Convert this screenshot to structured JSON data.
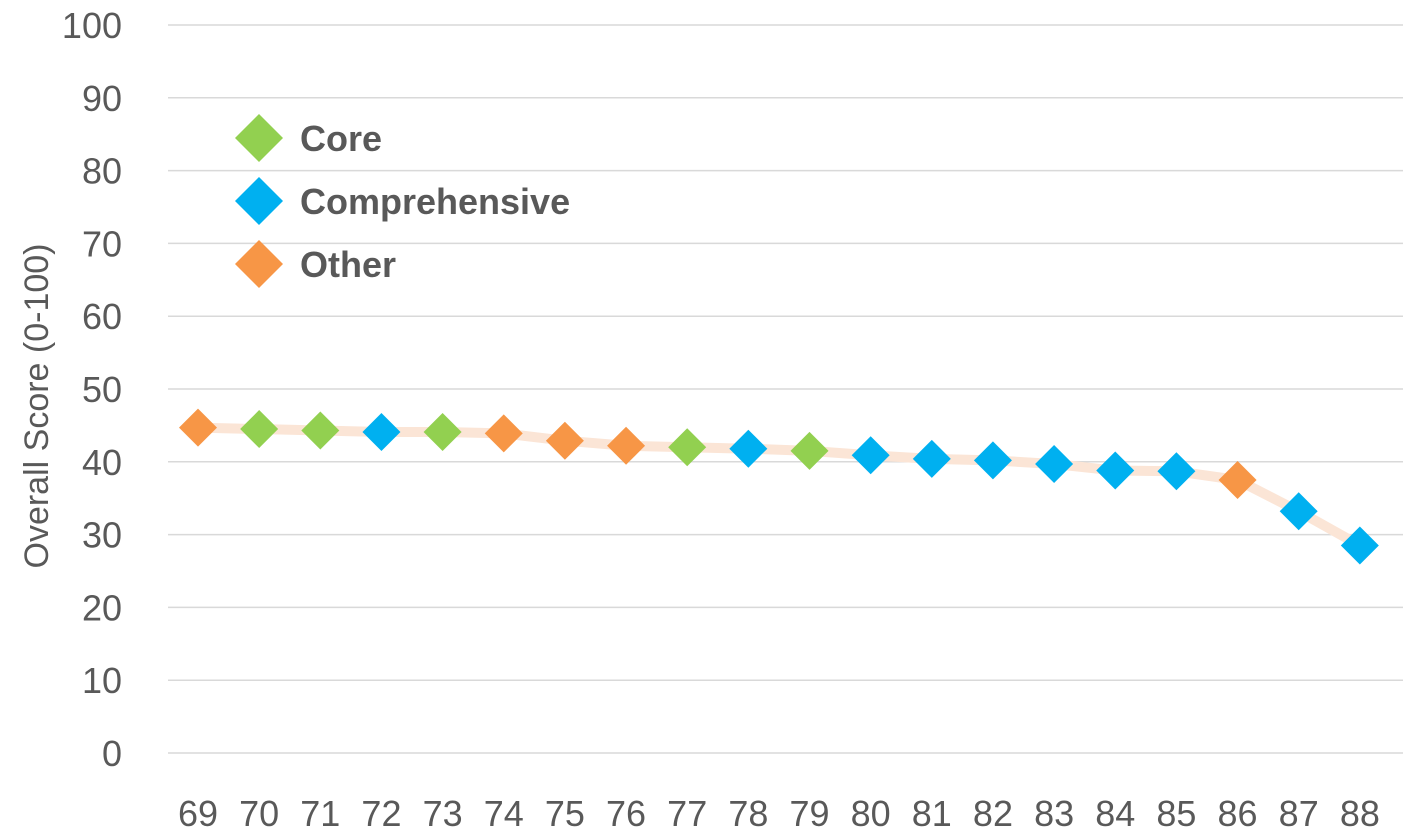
{
  "chart_data": {
    "type": "scatter",
    "title": "",
    "xlabel": "",
    "ylabel": "Overall Score (0-100)",
    "ylim": [
      0,
      100
    ],
    "yticks": [
      "0",
      "10",
      "20",
      "30",
      "40",
      "50",
      "60",
      "70",
      "80",
      "90",
      "100"
    ],
    "categories": [
      "69",
      "70",
      "71",
      "72",
      "73",
      "74",
      "75",
      "76",
      "77",
      "78",
      "79",
      "80",
      "81",
      "82",
      "83",
      "84",
      "85",
      "86",
      "87",
      "88"
    ],
    "values": [
      44.7,
      44.5,
      44.3,
      44.1,
      44.1,
      43.9,
      42.9,
      42.2,
      42.0,
      41.8,
      41.5,
      40.9,
      40.4,
      40.2,
      39.7,
      38.8,
      38.7,
      37.5,
      33.2,
      28.5
    ],
    "groups": [
      "Other",
      "Core",
      "Core",
      "Comprehensive",
      "Core",
      "Other",
      "Other",
      "Other",
      "Core",
      "Comprehensive",
      "Core",
      "Comprehensive",
      "Comprehensive",
      "Comprehensive",
      "Comprehensive",
      "Comprehensive",
      "Comprehensive",
      "Other",
      "Comprehensive",
      "Comprehensive"
    ],
    "series": [
      {
        "name": "Core",
        "color": "#92d050"
      },
      {
        "name": "Comprehensive",
        "color": "#00b0f0"
      },
      {
        "name": "Other",
        "color": "#f79646"
      }
    ],
    "line_color": "#fbe5d6",
    "grid": true,
    "legend_position": "top-left"
  }
}
